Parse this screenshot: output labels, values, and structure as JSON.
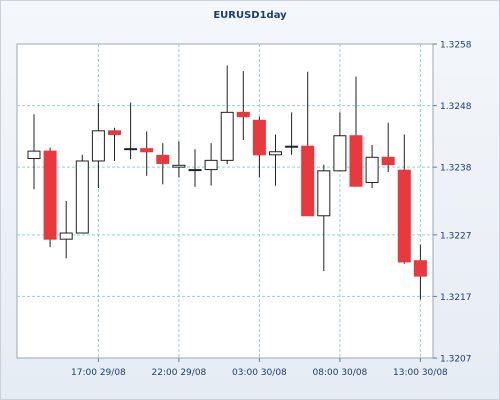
{
  "chart_data": {
    "type": "candlestick",
    "title": "EURUSD1day",
    "y_ticks": [
      "1.3258",
      "1.3248",
      "1.3238",
      "1.3227",
      "1.3217",
      "1.3207"
    ],
    "x_tick_labels": [
      "17:00 29/08",
      "22:00 29/08",
      "03:00 30/08",
      "08:00 30/08",
      "13:00 30/08"
    ],
    "ylim": [
      1.3207,
      1.3258
    ],
    "grid": true,
    "colors": {
      "up_fill": "#ffffff",
      "up_border": "#222222",
      "down": "#e8393f",
      "wick": "#222222",
      "grid": "#8fd3d6"
    },
    "candles": [
      {
        "open": 1.32394,
        "high": 1.32466,
        "low": 1.32344,
        "close": 1.32406
      },
      {
        "open": 1.32406,
        "high": 1.32412,
        "low": 1.3225,
        "close": 1.32263
      },
      {
        "open": 1.32263,
        "high": 1.32325,
        "low": 1.32232,
        "close": 1.32273
      },
      {
        "open": 1.32273,
        "high": 1.324,
        "low": 1.32273,
        "close": 1.3239
      },
      {
        "open": 1.3239,
        "high": 1.32484,
        "low": 1.32346,
        "close": 1.32439
      },
      {
        "open": 1.32439,
        "high": 1.32444,
        "low": 1.3239,
        "close": 1.32433
      },
      {
        "open": 1.3241,
        "high": 1.32485,
        "low": 1.32393,
        "close": 1.3241
      },
      {
        "open": 1.3241,
        "high": 1.32438,
        "low": 1.32366,
        "close": 1.32405
      },
      {
        "open": 1.32399,
        "high": 1.32419,
        "low": 1.32352,
        "close": 1.32386
      },
      {
        "open": 1.3238,
        "high": 1.32422,
        "low": 1.32363,
        "close": 1.32383
      },
      {
        "open": 1.32376,
        "high": 1.32409,
        "low": 1.32348,
        "close": 1.32376
      },
      {
        "open": 1.32376,
        "high": 1.32419,
        "low": 1.3235,
        "close": 1.32391
      },
      {
        "open": 1.32391,
        "high": 1.32545,
        "low": 1.32385,
        "close": 1.32469
      },
      {
        "open": 1.32469,
        "high": 1.32536,
        "low": 1.32424,
        "close": 1.32462
      },
      {
        "open": 1.32456,
        "high": 1.32462,
        "low": 1.32363,
        "close": 1.324
      },
      {
        "open": 1.324,
        "high": 1.32433,
        "low": 1.3235,
        "close": 1.32405
      },
      {
        "open": 1.32414,
        "high": 1.32469,
        "low": 1.324,
        "close": 1.32414
      },
      {
        "open": 1.32414,
        "high": 1.32535,
        "low": 1.32301,
        "close": 1.32301
      },
      {
        "open": 1.32301,
        "high": 1.32384,
        "low": 1.32211,
        "close": 1.32374
      },
      {
        "open": 1.32374,
        "high": 1.32469,
        "low": 1.32374,
        "close": 1.32431
      },
      {
        "open": 1.32431,
        "high": 1.32527,
        "low": 1.32349,
        "close": 1.32349
      },
      {
        "open": 1.32355,
        "high": 1.32416,
        "low": 1.32346,
        "close": 1.32396
      },
      {
        "open": 1.32396,
        "high": 1.32452,
        "low": 1.32372,
        "close": 1.32384
      },
      {
        "open": 1.32375,
        "high": 1.32433,
        "low": 1.32223,
        "close": 1.32226
      },
      {
        "open": 1.32228,
        "high": 1.32254,
        "low": 1.32165,
        "close": 1.32203
      }
    ]
  }
}
